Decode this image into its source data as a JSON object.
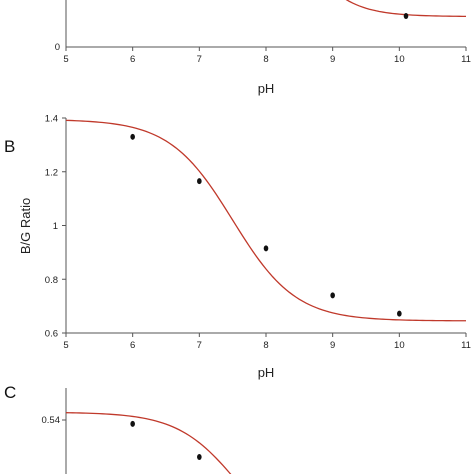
{
  "chart_data": [
    {
      "type": "line",
      "panel_label": "",
      "xlabel": "pH",
      "ylabel": "",
      "xlim": [
        5,
        11
      ],
      "x_ticks": [
        "5",
        "6",
        "7",
        "8",
        "9",
        "10",
        "11"
      ],
      "y_ticks": [
        "0"
      ],
      "series": [
        {
          "kind": "points",
          "x": [
            10.1
          ],
          "y": [
            0.12
          ]
        }
      ],
      "fit_curve": {
        "x": [
          8.6,
          8.8,
          9.0,
          9.2,
          9.4,
          9.6,
          9.8,
          10.0,
          10.2,
          10.5,
          10.8,
          11.0
        ],
        "y_px_note": ""
      }
    },
    {
      "type": "line",
      "panel_label": "B",
      "xlabel": "pH",
      "ylabel": "B/G Ratio",
      "xlim": [
        5,
        11
      ],
      "ylim": [
        0.6,
        1.4
      ],
      "x_ticks": [
        "5",
        "6",
        "7",
        "8",
        "9",
        "10",
        "11"
      ],
      "y_ticks": [
        "0.6",
        "0.8",
        "1",
        "1.2",
        "1.4"
      ],
      "series": [
        {
          "kind": "points",
          "x": [
            6,
            7,
            8,
            9,
            10
          ],
          "y": [
            1.33,
            1.165,
            0.915,
            0.74,
            0.672
          ]
        }
      ],
      "fit": {
        "bottom": 0.645,
        "top": 1.395,
        "pKa": 7.5,
        "slope": 0.92
      }
    },
    {
      "type": "line",
      "panel_label": "C",
      "xlabel": "",
      "ylabel": "",
      "xlim": [
        5,
        11
      ],
      "y_ticks": [
        "0.54"
      ],
      "series": [
        {
          "kind": "points",
          "x": [
            6,
            7
          ],
          "y": [
            0.538,
            0.521
          ]
        }
      ]
    }
  ],
  "colors": {
    "curve": "#c0392b",
    "points": "#111111",
    "axis": "#555555"
  }
}
